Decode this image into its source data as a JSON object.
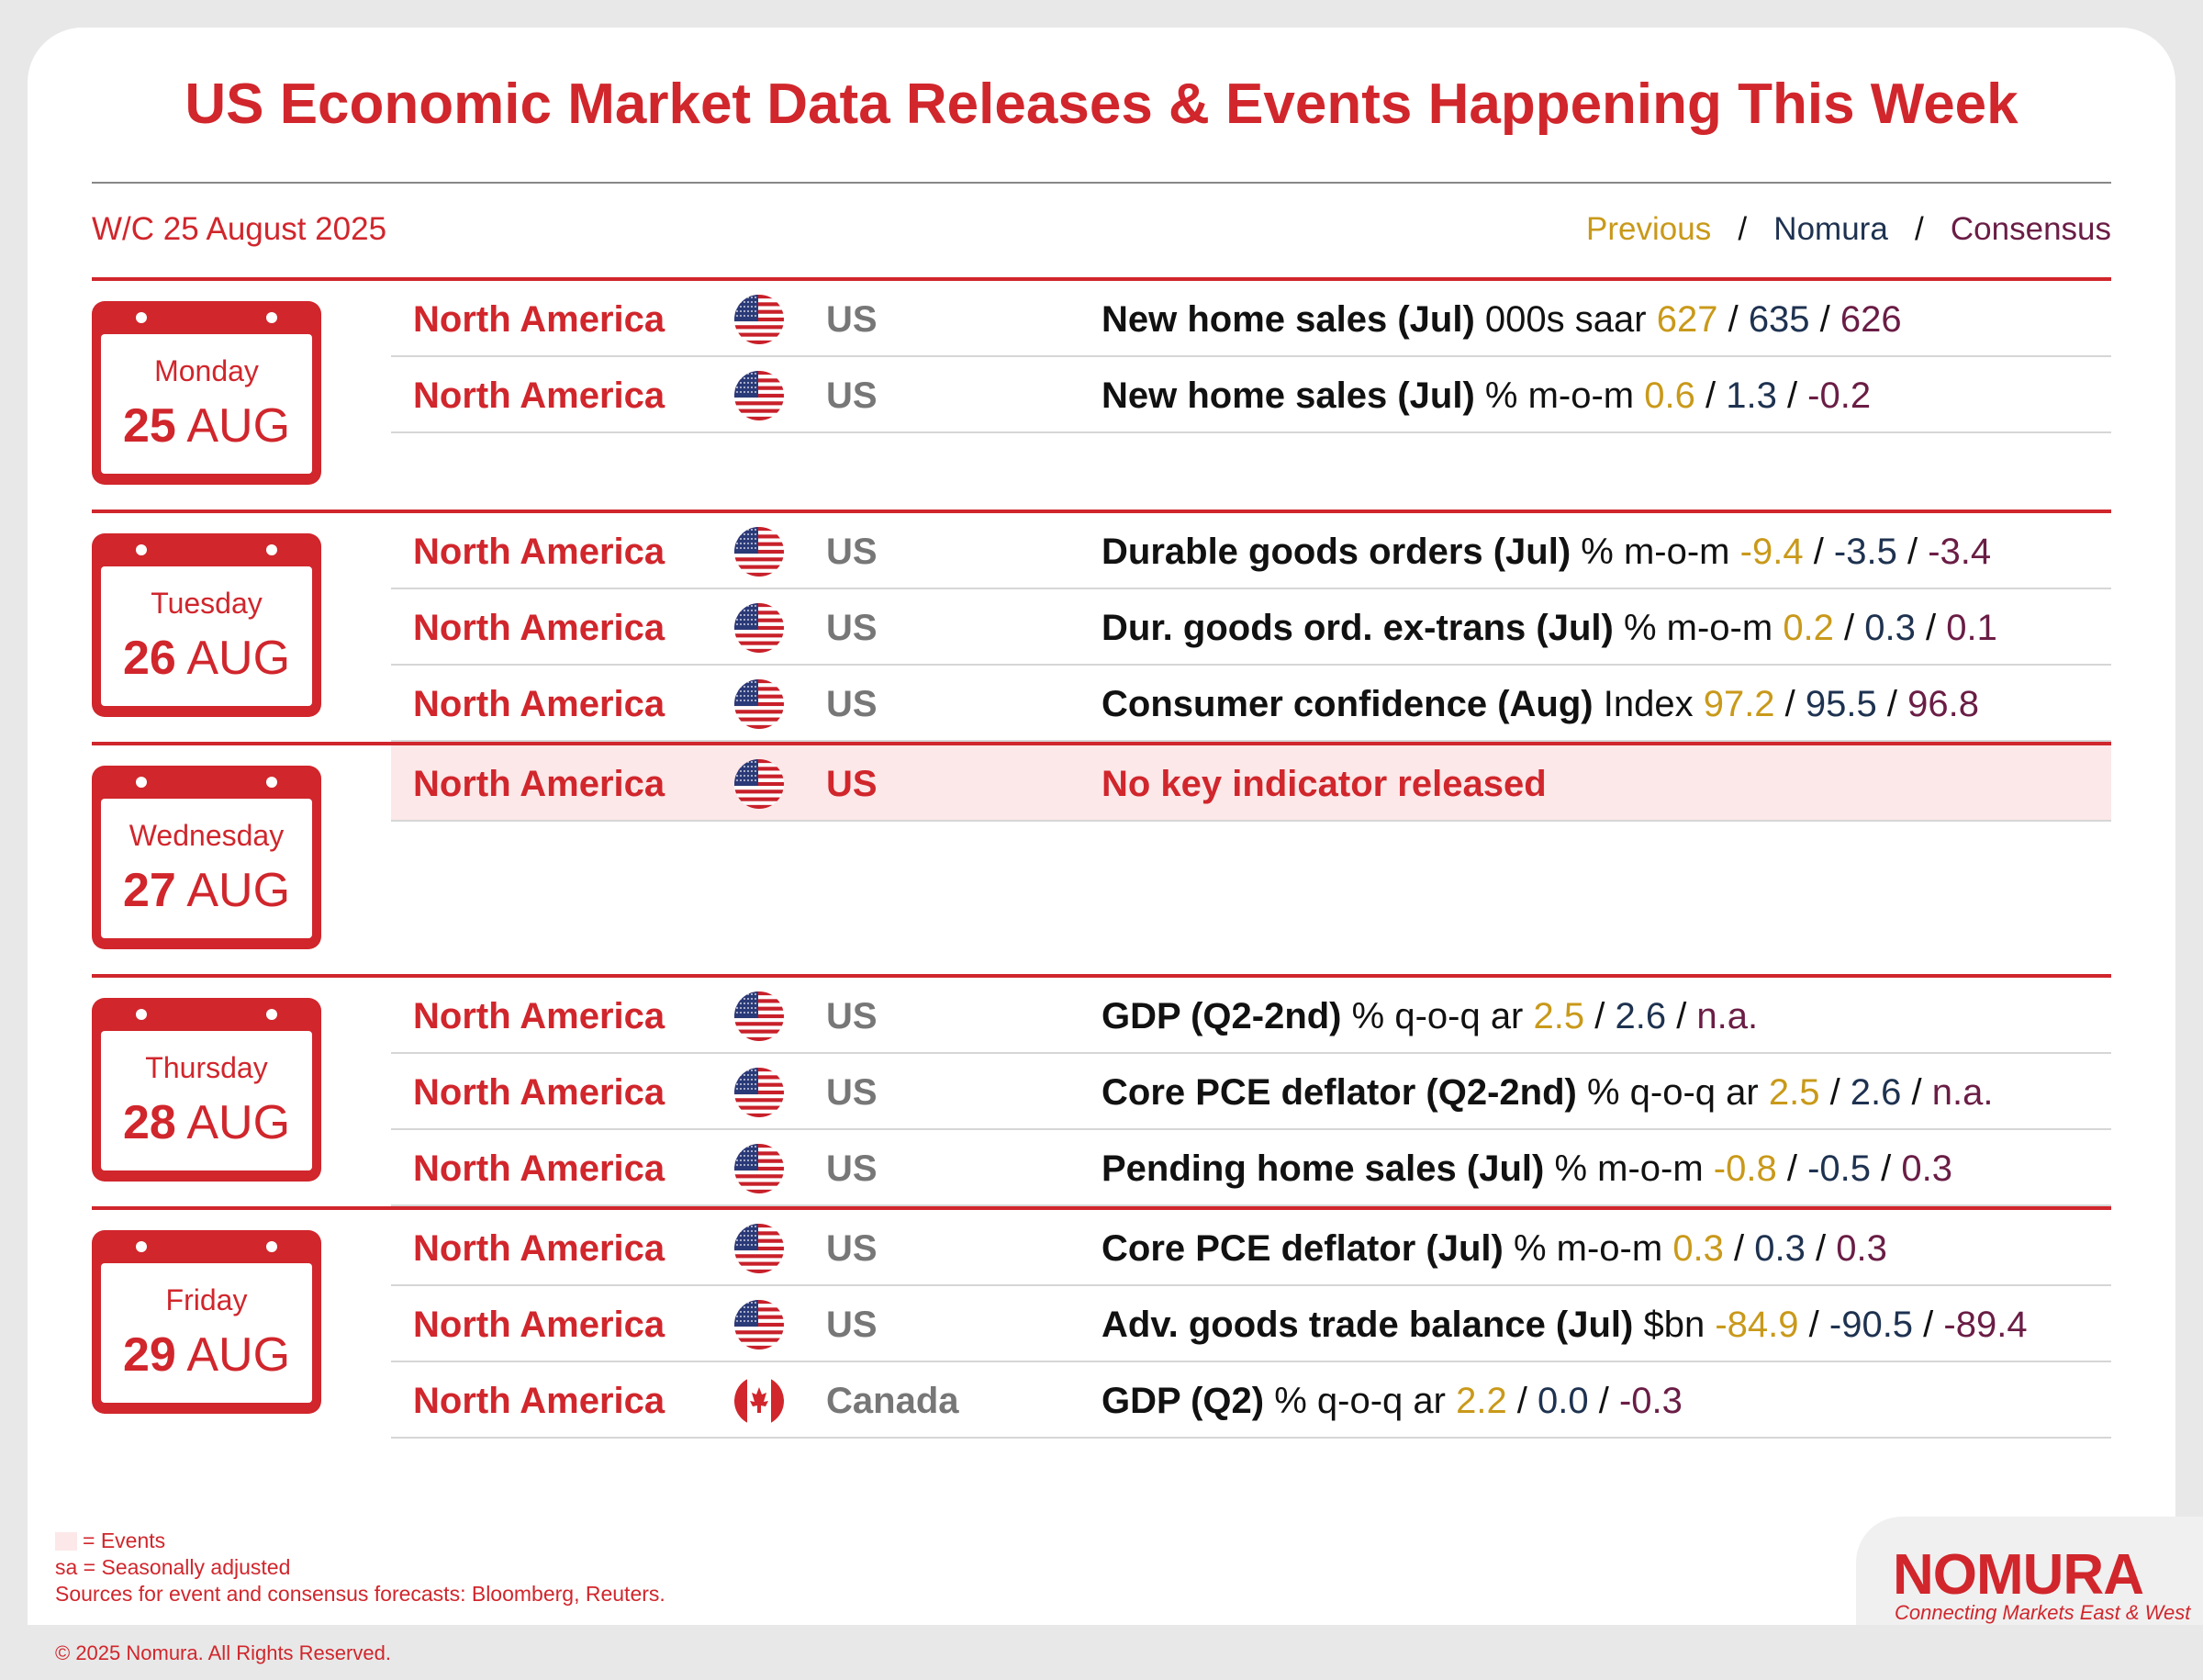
{
  "title": "US Economic Market Data Releases & Events Happening This Week",
  "week_label": "W/C 25 August 2025",
  "legend": {
    "previous": "Previous",
    "nomura": "Nomura",
    "consensus": "Consensus",
    "separator": "/"
  },
  "colors": {
    "brand_red": "#d0262c",
    "previous": "#c9991a",
    "nomura": "#1e3250",
    "consensus": "#6a1d45",
    "event_bg": "#fce8e9"
  },
  "days": [
    {
      "day": "Monday",
      "date_num": "25",
      "month": "AUG",
      "rows": [
        {
          "region": "North America",
          "flag": "us-flag-icon",
          "country": "US",
          "indicator": "New home sales (Jul)",
          "unit": "000s saar",
          "previous": "627",
          "nomura": "635",
          "consensus": "626"
        },
        {
          "region": "North America",
          "flag": "us-flag-icon",
          "country": "US",
          "indicator": "New home sales (Jul)",
          "unit": "% m-o-m",
          "previous": "0.6",
          "nomura": "1.3",
          "consensus": "-0.2"
        }
      ]
    },
    {
      "day": "Tuesday",
      "date_num": "26",
      "month": "AUG",
      "rows": [
        {
          "region": "North America",
          "flag": "us-flag-icon",
          "country": "US",
          "indicator": "Durable goods orders (Jul)",
          "unit": "% m-o-m",
          "previous": "-9.4",
          "nomura": "-3.5",
          "consensus": "-3.4"
        },
        {
          "region": "North America",
          "flag": "us-flag-icon",
          "country": "US",
          "indicator": "Dur. goods ord. ex-trans (Jul)",
          "unit": "% m-o-m",
          "previous": "0.2",
          "nomura": "0.3",
          "consensus": "0.1"
        },
        {
          "region": "North America",
          "flag": "us-flag-icon",
          "country": "US",
          "indicator": "Consumer confidence (Aug)",
          "unit": "Index",
          "previous": "97.2",
          "nomura": "95.5",
          "consensus": "96.8"
        }
      ]
    },
    {
      "day": "Wednesday",
      "date_num": "27",
      "month": "AUG",
      "rows": [
        {
          "region": "North America",
          "flag": "us-flag-icon",
          "country": "US",
          "event_text": "No key indicator released"
        }
      ]
    },
    {
      "day": "Thursday",
      "date_num": "28",
      "month": "AUG",
      "rows": [
        {
          "region": "North America",
          "flag": "us-flag-icon",
          "country": "US",
          "indicator": "GDP (Q2-2nd)",
          "unit": "% q-o-q ar",
          "previous": "2.5",
          "nomura": "2.6",
          "consensus": "n.a."
        },
        {
          "region": "North America",
          "flag": "us-flag-icon",
          "country": "US",
          "indicator": "Core PCE deflator (Q2-2nd)",
          "unit": "% q-o-q ar",
          "previous": "2.5",
          "nomura": "2.6",
          "consensus": "n.a."
        },
        {
          "region": "North America",
          "flag": "us-flag-icon",
          "country": "US",
          "indicator": "Pending home sales (Jul)",
          "unit": "% m-o-m",
          "previous": "-0.8",
          "nomura": "-0.5",
          "consensus": "0.3"
        }
      ]
    },
    {
      "day": "Friday",
      "date_num": "29",
      "month": "AUG",
      "rows": [
        {
          "region": "North America",
          "flag": "us-flag-icon",
          "country": "US",
          "indicator": "Core PCE deflator (Jul)",
          "unit": "% m-o-m",
          "previous": "0.3",
          "nomura": "0.3",
          "consensus": "0.3"
        },
        {
          "region": "North America",
          "flag": "us-flag-icon",
          "country": "US",
          "indicator": "Adv. goods trade balance (Jul)",
          "unit": "$bn",
          "previous": "-84.9",
          "nomura": "-90.5",
          "consensus": "-89.4"
        },
        {
          "region": "North America",
          "flag": "canada-flag-icon",
          "country": "Canada",
          "indicator": "GDP (Q2)",
          "unit": "% q-o-q ar",
          "previous": "2.2",
          "nomura": "0.0",
          "consensus": "-0.3"
        }
      ]
    }
  ],
  "footnotes": {
    "events": "= Events",
    "sa": "sa = Seasonally adjusted",
    "sources": "Sources for event and consensus forecasts: Bloomberg, Reuters."
  },
  "copyright": "© 2025 Nomura. All Rights Reserved.",
  "logo": {
    "name": "NOMURA",
    "tagline": "Connecting Markets East & West"
  }
}
